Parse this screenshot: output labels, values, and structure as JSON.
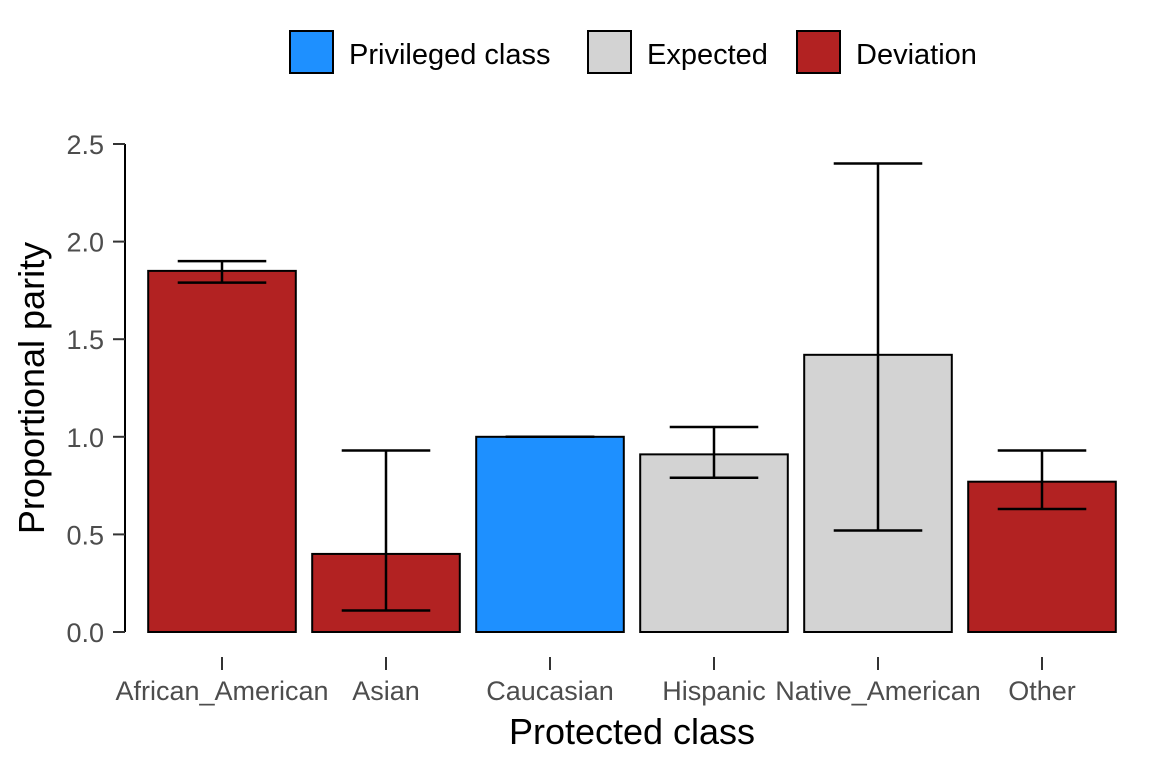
{
  "chart_data": {
    "type": "bar",
    "xlabel": "Protected class",
    "ylabel": "Proportional parity",
    "ylim": [
      0,
      2.5
    ],
    "yticks": [
      "0.0",
      "0.5",
      "1.0",
      "1.5",
      "2.0",
      "2.5"
    ],
    "grid": false,
    "legend_position": "top",
    "legend": [
      {
        "label": "Privileged class",
        "color": "#1e90ff"
      },
      {
        "label": "Expected",
        "color": "#d3d3d3"
      },
      {
        "label": "Deviation",
        "color": "#b22222"
      }
    ],
    "categories": [
      "African_American",
      "Asian",
      "Caucasian",
      "Hispanic",
      "Native_American",
      "Other"
    ],
    "values": [
      1.85,
      0.4,
      1.0,
      0.91,
      1.42,
      0.77
    ],
    "error_low": [
      1.79,
      0.11,
      1.0,
      0.79,
      0.52,
      0.63
    ],
    "error_high": [
      1.9,
      0.93,
      1.0,
      1.05,
      2.4,
      0.93
    ],
    "group": [
      "Deviation",
      "Deviation",
      "Privileged class",
      "Expected",
      "Expected",
      "Deviation"
    ]
  }
}
